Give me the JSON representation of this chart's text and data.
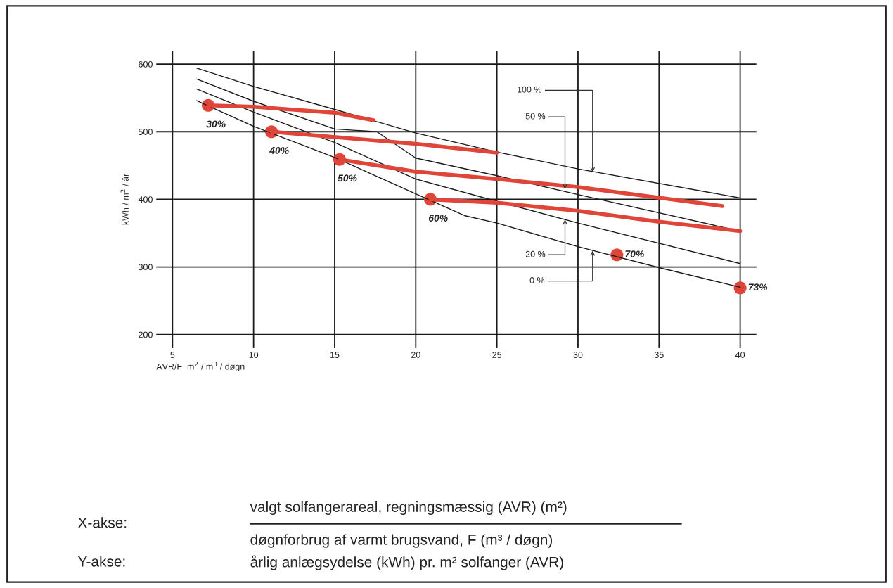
{
  "chart_data": {
    "type": "line",
    "xlabel": "AVR/F  m$^{2}$ / m$^{3}$ / døgn",
    "ylabel": "kWh / m$^{2}$ / år",
    "xlim": [
      4,
      41
    ],
    "ylim": [
      180,
      620
    ],
    "xticks": [
      5,
      10,
      15,
      20,
      25,
      30,
      35,
      40
    ],
    "yticks": [
      200,
      300,
      400,
      500,
      600
    ],
    "grid": true,
    "marker": "none",
    "line_style": "solid",
    "series": [
      {
        "color": "#1a1a1a",
        "x": [
          6.5,
          10,
          15,
          20,
          25,
          30,
          40
        ],
        "values": [
          594,
          567,
          533,
          498,
          470,
          445,
          402
        ]
      },
      {
        "color": "#1a1a1a",
        "x": [
          6.5,
          10,
          15,
          17.6,
          20,
          25,
          30,
          40
        ],
        "values": [
          578,
          545,
          504,
          500,
          461,
          435,
          407,
          353
        ]
      },
      {
        "color": "#1a1a1a",
        "x": [
          6.5,
          10,
          15,
          20,
          25,
          30,
          40
        ],
        "values": [
          563,
          529,
          484,
          430,
          397,
          365,
          305
        ]
      },
      {
        "color": "#1a1a1a",
        "x": [
          6.5,
          10,
          15,
          20,
          23,
          25,
          30,
          35,
          40
        ],
        "values": [
          546,
          508,
          462,
          408,
          376,
          365,
          330,
          299,
          270
        ]
      },
      {
        "color": "#e0453a",
        "x": [
          7.2,
          10,
          15,
          17.4
        ],
        "values": [
          539,
          537,
          528,
          517
        ]
      },
      {
        "color": "#e0453a",
        "x": [
          11.1,
          20,
          25
        ],
        "values": [
          500,
          482,
          469
        ]
      },
      {
        "color": "#e0453a",
        "x": [
          15.3,
          20,
          25,
          30,
          38.9
        ],
        "values": [
          459,
          441,
          430,
          418,
          390
        ]
      },
      {
        "color": "#e0453a",
        "x": [
          20.9,
          25,
          30,
          35,
          40
        ],
        "values": [
          400,
          395,
          383,
          367,
          353
        ]
      },
      {
        "type": "scatter",
        "color": "#e0453a",
        "marker": "circle",
        "x": [
          7.2,
          11.1,
          15.3,
          20.9,
          32.4,
          40
        ],
        "values": [
          539,
          500,
          459,
          400,
          318,
          269
        ]
      }
    ],
    "annotations": [
      {
        "text": "100 %",
        "x": 30.9,
        "y": 440
      },
      {
        "text": "50 %",
        "x": 29.2,
        "y": 415
      },
      {
        "text": "20 %",
        "x": 29.2,
        "y": 370
      },
      {
        "text": "0 %",
        "x": 30.9,
        "y": 324
      },
      {
        "text": "30%",
        "x": 7.2,
        "y": 539
      },
      {
        "text": "40%",
        "x": 11.1,
        "y": 500
      },
      {
        "text": "50%",
        "x": 15.3,
        "y": 459
      },
      {
        "text": "60%",
        "x": 20.9,
        "y": 400
      },
      {
        "text": "70%",
        "x": 32.4,
        "y": 318
      },
      {
        "text": "73%",
        "x": 40,
        "y": 269
      },
      "X-akse:",
      "valgt solfangerareal, regningsmæssig (AVR) (m²)",
      "døgnforbrug af varmt brugsvand, F (m³ / døgn)",
      "Y-akse:",
      "årlig anlægsydelse (kWh) pr. m² solfanger (AVR)"
    ]
  }
}
